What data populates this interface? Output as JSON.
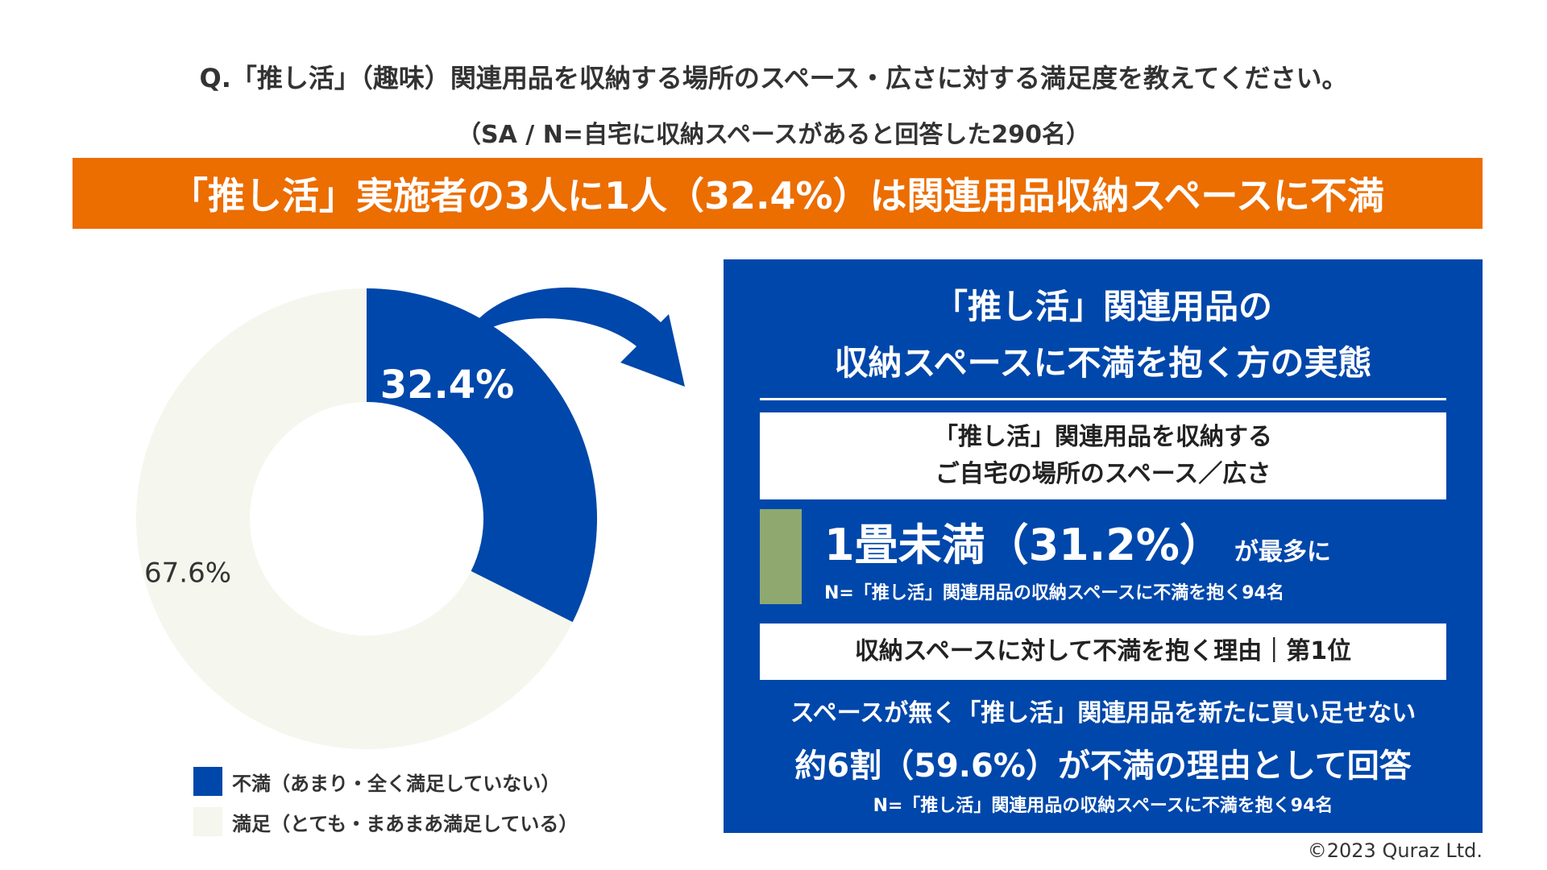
{
  "question": "Q.「推し活」（趣味）関連用品を収納する場所のスペース・広さに対する満足度を教えてください。",
  "sample_note": "（SA / N=自宅に収納スペースがあると回答した290名）",
  "banner": "「推し活」実施者の3人に1人（32.4%）は関連用品収納スペースに不満",
  "chart_data": {
    "type": "pie",
    "donut": true,
    "categories": [
      "不満（あまり・全く満足していない）",
      "満足（とても・まあまあ満足している）"
    ],
    "values": [
      32.4,
      67.6
    ],
    "data_labels": [
      "32.4%",
      "67.6%"
    ],
    "colors": [
      "#0047ab",
      "#f5f6ee"
    ],
    "label_colors": [
      "#ffffff",
      "#333333"
    ],
    "legend_position": "bottom"
  },
  "panel": {
    "title_line1": "「推し活」関連用品の",
    "title_line2": "収納スペースに不満を抱く方の実態",
    "box1_line1": "「推し活」関連用品を収納する",
    "box1_line2": "ご自宅の場所のスペース／広さ",
    "stat_main": "1畳未満（31.2%）",
    "stat_suffix": "が最多に",
    "note1": "N=「推し活」関連用品の収納スペースに不満を抱く94名",
    "box2": "収納スペースに対して不満を抱く理由｜第1位",
    "reason_line1": "スペースが無く「推し活」関連用品を新たに買い足せない",
    "reason_line2": "約6割（59.6%）が不満の理由として回答",
    "note2": "N=「推し活」関連用品の収納スペースに不満を抱く94名"
  },
  "colors": {
    "accent_orange": "#ec6d00",
    "brand_blue": "#0047ab",
    "tatami_green": "#8fa870"
  },
  "copyright": "©2023 Quraz Ltd."
}
